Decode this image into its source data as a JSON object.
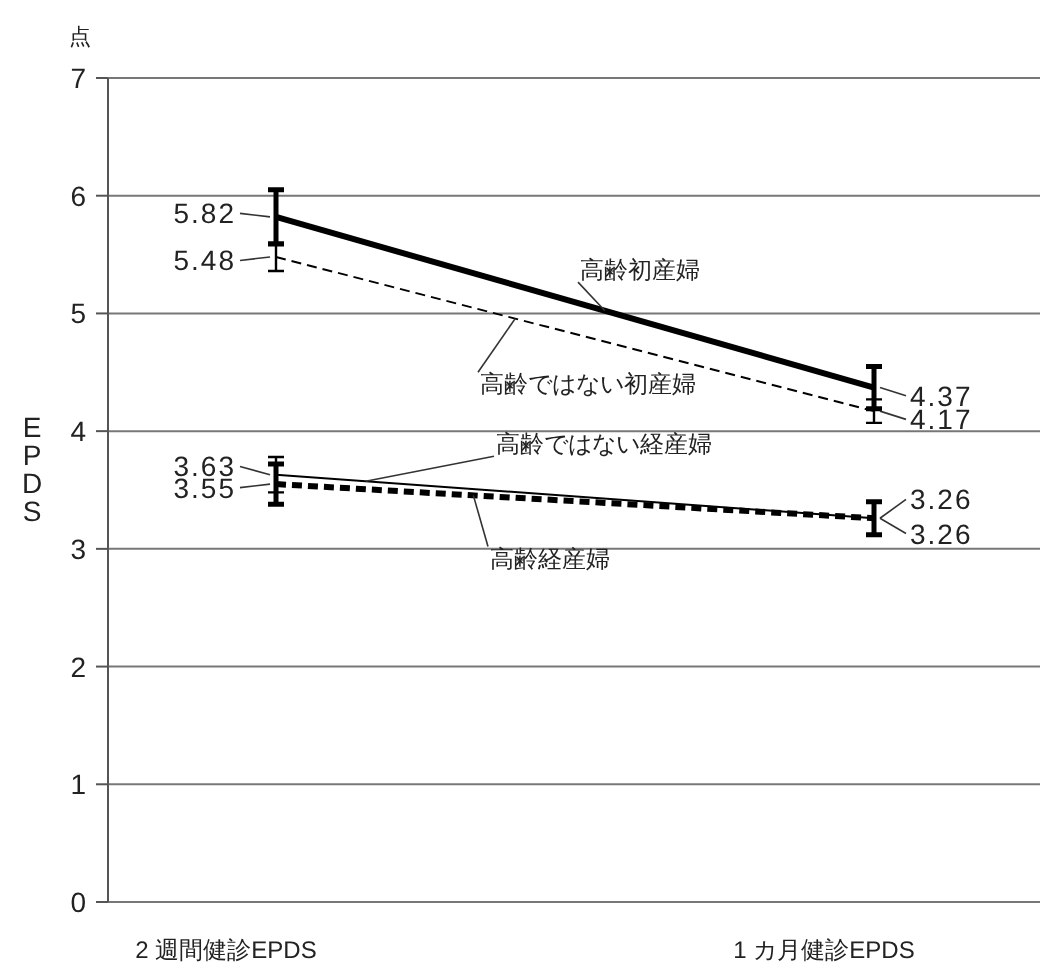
{
  "chart_data": {
    "type": "line",
    "categories": [
      "2 週間健診EPDS",
      "1 カ月健診EPDS"
    ],
    "ylabel": "EPDS",
    "annotations": [
      "点"
    ],
    "ylim": [
      0,
      7
    ],
    "yticks": [
      0,
      1,
      2,
      3,
      4,
      5,
      6,
      7
    ],
    "grid": "y",
    "legend": false,
    "data_labels": true,
    "series": [
      {
        "name": "高齢初産婦",
        "color": "#000000",
        "line_style": "solid",
        "values": [
          5.82,
          4.37
        ],
        "errors": [
          0.23,
          0.18
        ]
      },
      {
        "name": "高齢ではない初産婦",
        "color": "#000000",
        "line_style": "dashed",
        "values": [
          5.48,
          4.17
        ],
        "errors": [
          0.12,
          0.1
        ]
      },
      {
        "name": "高齢ではない経産婦",
        "color": "#000000",
        "line_style": "solid",
        "values": [
          3.63,
          3.26
        ],
        "errors": [
          0.15,
          0.14
        ]
      },
      {
        "name": "高齢経産婦",
        "color": "#000000",
        "line_style": "dashed",
        "values": [
          3.55,
          3.26
        ],
        "errors": [
          0.17,
          0.14
        ]
      }
    ]
  }
}
